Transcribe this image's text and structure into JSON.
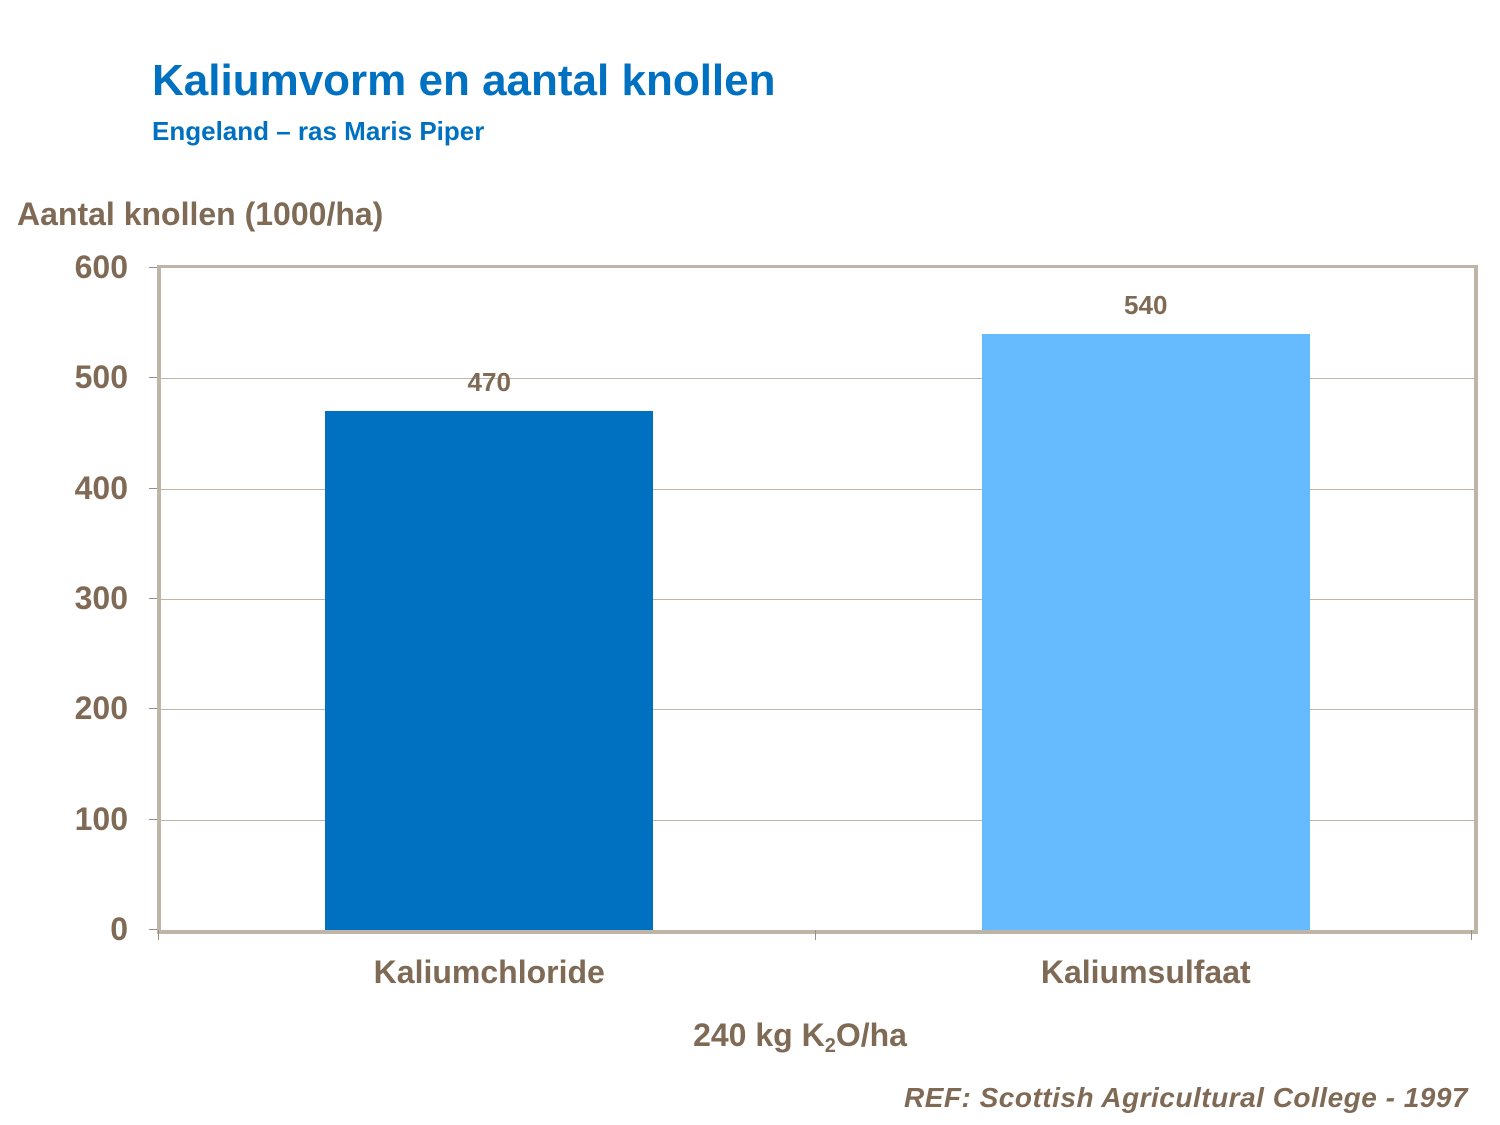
{
  "slide": {
    "title": "Kaliumvorm en aantal knollen",
    "subtitle": "Engeland – ras Maris Piper",
    "reference": "REF: Scottish Agricultural College - 1997"
  },
  "colors": {
    "title": "#0070C0",
    "text": "#7F6A55",
    "axis": "#BFB4A8",
    "bar_kaliumchloride": "#0070C0",
    "bar_kaliumsulfaat": "#66BBFF"
  },
  "chart_data": {
    "type": "bar",
    "title": "Kaliumvorm en aantal knollen",
    "subtitle": "Engeland – ras Maris Piper",
    "ylabel": "Aantal knollen (1000/ha)",
    "xlabel_prefix": "240 kg K",
    "xlabel_sub": "2",
    "xlabel_suffix": "O/ha",
    "xlabel": "240 kg K2O/ha",
    "categories": [
      "Kaliumchloride",
      "Kaliumsulfaat"
    ],
    "values": [
      470,
      540
    ],
    "data_labels": [
      "470",
      "540"
    ],
    "bar_colors": [
      "#0070C0",
      "#66BBFF"
    ],
    "ylim": [
      0,
      600
    ],
    "yticks": [
      "0",
      "100",
      "200",
      "300",
      "400",
      "500",
      "600"
    ],
    "grid": true,
    "legend": "none",
    "annotation": "REF: Scottish Agricultural College - 1997"
  }
}
